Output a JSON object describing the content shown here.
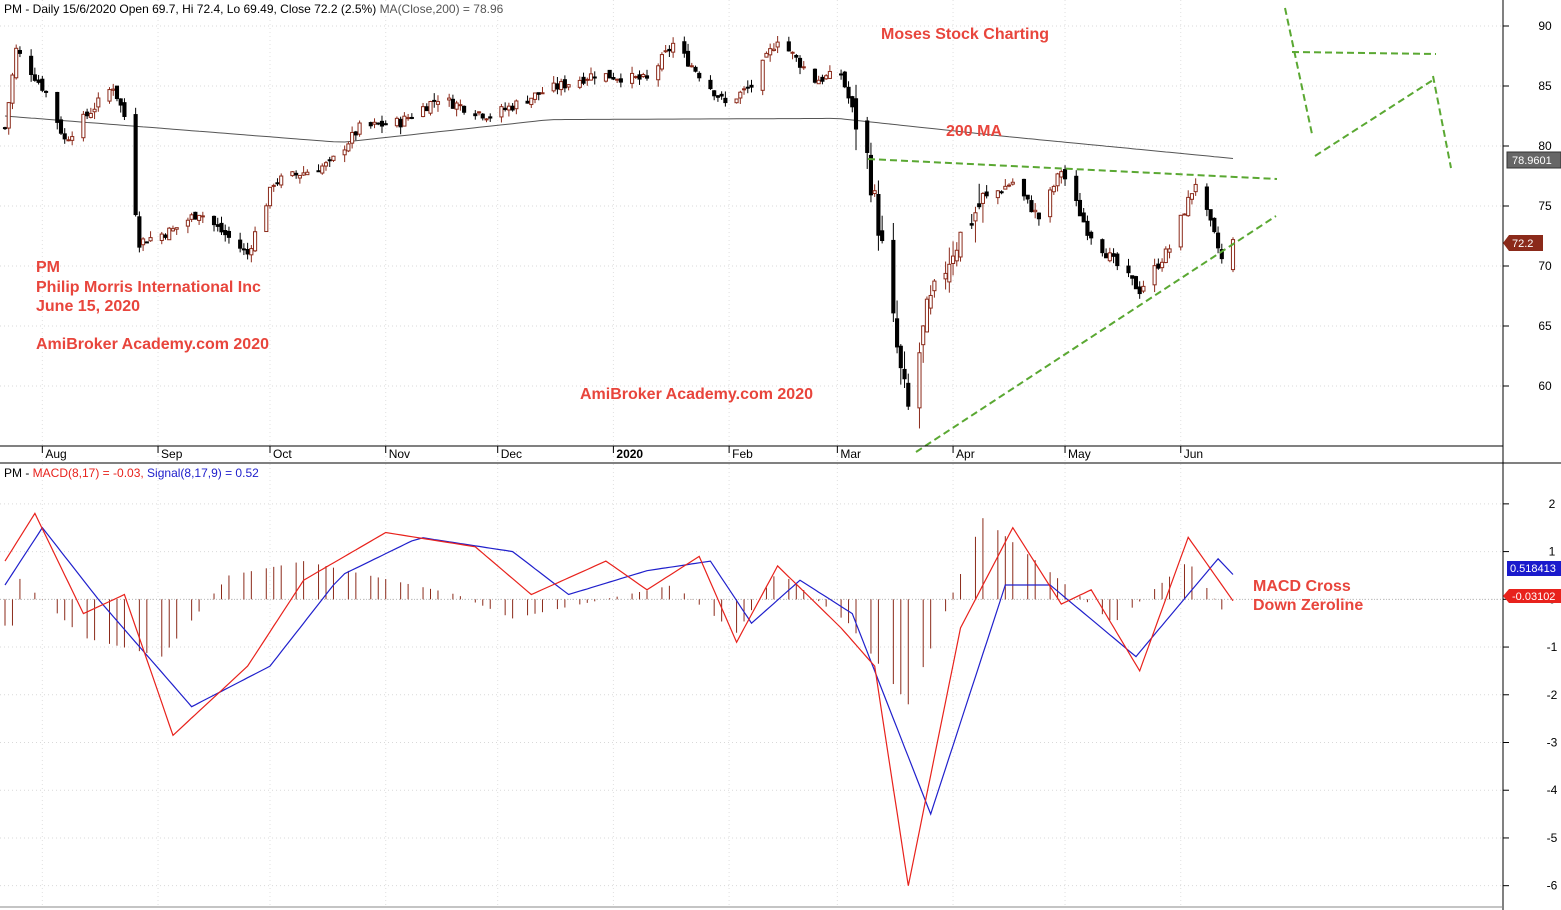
{
  "header": {
    "price_prefix": "PM - Daily 15/6/2020 Open 69.7, Hi 72.4, Lo 69.49, Close 72.2 (2.5%) ",
    "price_ma": "MA(Close,200) = 78.96",
    "macd_prefix": "PM - ",
    "macd_label": "MACD(8,17) = -0.03, ",
    "signal_label": "Signal(8,17,9) = 0.52"
  },
  "annotations": {
    "watermark_top": "Moses Stock Charting",
    "ma_label": "200 MA",
    "ticker": "PM",
    "company": "Philip Morris International Inc",
    "date": "June 15, 2020",
    "academy_left": "AmiBroker Academy.com  2020",
    "academy_center": "AmiBroker Academy.com 2020",
    "macd_note_1": "MACD Cross",
    "macd_note_2": "Down Zeroline"
  },
  "colors": {
    "up_candle": "#ffffff",
    "down_candle": "#000000",
    "candle_outline": "#8b2a1a",
    "ma_line": "#555555",
    "macd_line": "#e8221c",
    "signal_line": "#2020cc",
    "histogram": "#8b2a1a",
    "trendline": "#5aa832",
    "annotation_text": "#e8453c"
  },
  "chart_data": [
    {
      "type": "candlestick",
      "x_axis": "date",
      "month_labels": [
        "Aug",
        "Sep",
        "Oct",
        "Nov",
        "Dec",
        "2020",
        "Feb",
        "Mar",
        "Apr",
        "May",
        "Jun"
      ],
      "ylim": [
        55.5,
        91.5
      ],
      "y_ticks": [
        60,
        65,
        70,
        75,
        80,
        85,
        90
      ],
      "last_close_tag": "72.2",
      "ma_tag": "78.9601",
      "ohlc_keypoints_close": [
        {
          "date": "2019-07-22",
          "close": 81.5
        },
        {
          "date": "2019-07-25",
          "close": 88.0
        },
        {
          "date": "2019-08-02",
          "close": 84.5
        },
        {
          "date": "2019-08-07",
          "close": 80.5
        },
        {
          "date": "2019-08-20",
          "close": 85.0
        },
        {
          "date": "2019-08-23",
          "close": 82.5
        },
        {
          "date": "2019-08-27",
          "close": 72.0
        },
        {
          "date": "2019-09-05",
          "close": 73.0
        },
        {
          "date": "2019-09-12",
          "close": 74.5
        },
        {
          "date": "2019-09-25",
          "close": 71.0
        },
        {
          "date": "2019-10-02",
          "close": 77.0
        },
        {
          "date": "2019-10-17",
          "close": 78.5
        },
        {
          "date": "2019-10-25",
          "close": 81.5
        },
        {
          "date": "2019-11-05",
          "close": 82.0
        },
        {
          "date": "2019-11-15",
          "close": 84.0
        },
        {
          "date": "2019-11-29",
          "close": 82.5
        },
        {
          "date": "2019-12-13",
          "close": 84.5
        },
        {
          "date": "2019-12-27",
          "close": 86.0
        },
        {
          "date": "2020-01-10",
          "close": 85.5
        },
        {
          "date": "2020-01-17",
          "close": 88.5
        },
        {
          "date": "2020-01-31",
          "close": 83.5
        },
        {
          "date": "2020-02-07",
          "close": 85.0
        },
        {
          "date": "2020-02-14",
          "close": 89.0
        },
        {
          "date": "2020-02-24",
          "close": 85.5
        },
        {
          "date": "2020-03-02",
          "close": 86.0
        },
        {
          "date": "2020-03-09",
          "close": 79.0
        },
        {
          "date": "2020-03-12",
          "close": 73.5
        },
        {
          "date": "2020-03-18",
          "close": 61.0
        },
        {
          "date": "2020-03-20",
          "close": 58.0
        },
        {
          "date": "2020-03-25",
          "close": 66.0
        },
        {
          "date": "2020-04-01",
          "close": 71.5
        },
        {
          "date": "2020-04-09",
          "close": 75.5
        },
        {
          "date": "2020-04-17",
          "close": 77.0
        },
        {
          "date": "2020-04-24",
          "close": 74.0
        },
        {
          "date": "2020-04-30",
          "close": 78.0
        },
        {
          "date": "2020-05-07",
          "close": 73.0
        },
        {
          "date": "2020-05-15",
          "close": 70.0
        },
        {
          "date": "2020-05-21",
          "close": 68.0
        },
        {
          "date": "2020-05-29",
          "close": 71.5
        },
        {
          "date": "2020-06-05",
          "close": 77.0
        },
        {
          "date": "2020-06-10",
          "close": 72.5
        },
        {
          "date": "2020-06-12",
          "close": 70.5
        },
        {
          "date": "2020-06-15",
          "close": 72.2
        }
      ],
      "ma200_keypoints": [
        {
          "date": "2019-07-22",
          "value": 82.5
        },
        {
          "date": "2019-10-20",
          "value": 80.3
        },
        {
          "date": "2019-12-15",
          "value": 82.2
        },
        {
          "date": "2020-03-01",
          "value": 82.3
        },
        {
          "date": "2020-04-15",
          "value": 80.8
        },
        {
          "date": "2020-06-15",
          "value": 78.96
        }
      ]
    },
    {
      "type": "line",
      "x_axis": "date",
      "ylim": [
        -6.3,
        2.5
      ],
      "y_ticks": [
        2,
        1,
        0,
        -1,
        -2,
        -3,
        -4,
        -5,
        -6
      ],
      "macd_tag": "-0.03102",
      "signal_tag": "0.518413",
      "macd_keypoints": [
        {
          "date": "2019-07-22",
          "value": 0.8
        },
        {
          "date": "2019-07-30",
          "value": 1.8
        },
        {
          "date": "2019-08-12",
          "value": -0.3
        },
        {
          "date": "2019-08-23",
          "value": 0.1
        },
        {
          "date": "2019-09-05",
          "value": -2.85
        },
        {
          "date": "2019-09-25",
          "value": -1.4
        },
        {
          "date": "2019-10-10",
          "value": 0.4
        },
        {
          "date": "2019-11-01",
          "value": 1.4
        },
        {
          "date": "2019-11-25",
          "value": 1.1
        },
        {
          "date": "2019-12-10",
          "value": 0.1
        },
        {
          "date": "2019-12-30",
          "value": 0.8
        },
        {
          "date": "2020-01-10",
          "value": 0.2
        },
        {
          "date": "2020-01-24",
          "value": 0.9
        },
        {
          "date": "2020-02-03",
          "value": -0.9
        },
        {
          "date": "2020-02-14",
          "value": 0.7
        },
        {
          "date": "2020-03-02",
          "value": -0.6
        },
        {
          "date": "2020-03-11",
          "value": -1.4
        },
        {
          "date": "2020-03-20",
          "value": -6.0
        },
        {
          "date": "2020-04-03",
          "value": -0.6
        },
        {
          "date": "2020-04-17",
          "value": 1.5
        },
        {
          "date": "2020-04-30",
          "value": -0.1
        },
        {
          "date": "2020-05-08",
          "value": 0.2
        },
        {
          "date": "2020-05-21",
          "value": -1.5
        },
        {
          "date": "2020-06-03",
          "value": 1.3
        },
        {
          "date": "2020-06-15",
          "value": -0.03
        }
      ],
      "signal_keypoints": [
        {
          "date": "2019-07-22",
          "value": 0.3
        },
        {
          "date": "2019-08-01",
          "value": 1.5
        },
        {
          "date": "2019-08-16",
          "value": 0.0
        },
        {
          "date": "2019-09-10",
          "value": -2.25
        },
        {
          "date": "2019-10-01",
          "value": -1.4
        },
        {
          "date": "2019-10-20",
          "value": 0.5
        },
        {
          "date": "2019-11-10",
          "value": 1.3
        },
        {
          "date": "2019-12-05",
          "value": 1.0
        },
        {
          "date": "2019-12-20",
          "value": 0.1
        },
        {
          "date": "2020-01-10",
          "value": 0.6
        },
        {
          "date": "2020-01-27",
          "value": 0.8
        },
        {
          "date": "2020-02-07",
          "value": -0.5
        },
        {
          "date": "2020-02-20",
          "value": 0.4
        },
        {
          "date": "2020-03-05",
          "value": -0.3
        },
        {
          "date": "2020-03-26",
          "value": -4.5
        },
        {
          "date": "2020-04-15",
          "value": 0.3
        },
        {
          "date": "2020-04-27",
          "value": 0.3
        },
        {
          "date": "2020-05-20",
          "value": -1.2
        },
        {
          "date": "2020-06-11",
          "value": 0.85
        },
        {
          "date": "2020-06-15",
          "value": 0.52
        }
      ],
      "histogram_keypoints": [
        {
          "date": "2019-07-25",
          "value": 0.5
        },
        {
          "date": "2019-08-12",
          "value": -0.8
        },
        {
          "date": "2019-09-02",
          "value": -1.2
        },
        {
          "date": "2019-09-20",
          "value": 0.5
        },
        {
          "date": "2019-10-10",
          "value": 0.8
        },
        {
          "date": "2019-11-20",
          "value": 0.1
        },
        {
          "date": "2019-12-05",
          "value": -0.4
        },
        {
          "date": "2020-01-17",
          "value": 0.3
        },
        {
          "date": "2020-02-03",
          "value": -0.7
        },
        {
          "date": "2020-02-14",
          "value": 0.6
        },
        {
          "date": "2020-03-04",
          "value": -0.5
        },
        {
          "date": "2020-03-20",
          "value": -2.2
        },
        {
          "date": "2020-04-09",
          "value": 1.7
        },
        {
          "date": "2020-05-14",
          "value": -0.5
        },
        {
          "date": "2020-06-03",
          "value": 0.8
        },
        {
          "date": "2020-06-15",
          "value": -0.55
        }
      ]
    }
  ]
}
